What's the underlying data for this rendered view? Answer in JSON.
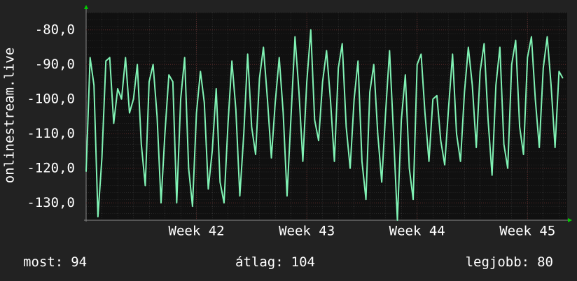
{
  "chart_data": {
    "type": "line",
    "y_label": "onlinestream.live",
    "x": [
      41,
      41.036,
      41.071,
      41.107,
      41.143,
      41.179,
      41.214,
      41.25,
      41.286,
      41.321,
      41.357,
      41.393,
      41.429,
      41.464,
      41.5,
      41.536,
      41.571,
      41.607,
      41.643,
      41.679,
      41.714,
      41.75,
      41.786,
      41.821,
      41.857,
      41.893,
      41.929,
      41.964,
      42,
      42.036,
      42.071,
      42.107,
      42.143,
      42.179,
      42.214,
      42.25,
      42.286,
      42.321,
      42.357,
      42.393,
      42.429,
      42.464,
      42.5,
      42.536,
      42.571,
      42.607,
      42.643,
      42.679,
      42.714,
      42.75,
      42.786,
      42.821,
      42.857,
      42.893,
      42.929,
      42.964,
      43,
      43.036,
      43.071,
      43.107,
      43.143,
      43.179,
      43.214,
      43.25,
      43.286,
      43.321,
      43.357,
      43.393,
      43.429,
      43.464,
      43.5,
      43.536,
      43.571,
      43.607,
      43.643,
      43.679,
      43.714,
      43.75,
      43.786,
      43.821,
      43.857,
      43.893,
      43.929,
      43.964,
      44,
      44.036,
      44.071,
      44.107,
      44.143,
      44.179,
      44.214,
      44.25,
      44.286,
      44.321,
      44.357,
      44.393,
      44.429,
      44.464,
      44.5,
      44.536,
      44.571,
      44.607,
      44.643,
      44.679,
      44.714,
      44.75,
      44.786,
      44.821,
      44.857,
      44.893,
      44.929,
      44.964,
      45,
      45.036,
      45.071,
      45.107,
      45.143,
      45.179,
      45.214,
      45.25,
      45.286,
      45.321
    ],
    "series": [
      {
        "color": "#80f2b4",
        "values": [
          -121,
          -88,
          -96,
          -134,
          -117,
          -89,
          -88,
          -107,
          -97,
          -100,
          -88,
          -104,
          -100,
          -90,
          -113,
          -125,
          -95,
          -90,
          -105,
          -130,
          -110,
          -93,
          -95,
          -130,
          -100,
          -88,
          -120,
          -131,
          -104,
          -92,
          -101,
          -126,
          -115,
          -97,
          -124,
          -130,
          -107,
          -89,
          -103,
          -128,
          -110,
          -87,
          -108,
          -116,
          -94,
          -85,
          -100,
          -117,
          -101,
          -88,
          -104,
          -128,
          -105,
          -82,
          -98,
          -118,
          -95,
          -80,
          -106,
          -112,
          -95,
          -86,
          -100,
          -118,
          -91,
          -84,
          -108,
          -120,
          -100,
          -89,
          -118,
          -129,
          -98,
          -90,
          -110,
          -124,
          -104,
          -86,
          -110,
          -135,
          -106,
          -93,
          -120,
          -129,
          -90,
          -87,
          -104,
          -118,
          -100,
          -99,
          -112,
          -119,
          -102,
          -87,
          -110,
          -118,
          -98,
          -85,
          -96,
          -114,
          -92,
          -84,
          -106,
          -122,
          -96,
          -85,
          -113,
          -120,
          -90,
          -83,
          -108,
          -116,
          -88,
          -82,
          -100,
          -114,
          -91,
          -82,
          -96,
          -114,
          -92,
          -94
        ]
      }
    ],
    "xlim": [
      41,
      45.36
    ],
    "xticks": [
      {
        "value": 42,
        "label": "Week 42"
      },
      {
        "value": 43,
        "label": "Week 43"
      },
      {
        "value": 44,
        "label": "Week 44"
      },
      {
        "value": 45,
        "label": "Week 45"
      }
    ],
    "ylim": [
      -135,
      -75
    ],
    "yticks": [
      {
        "value": -80,
        "label": "-80,0"
      },
      {
        "value": -90,
        "label": "-90,0"
      },
      {
        "value": -100,
        "label": "-100,0"
      },
      {
        "value": -110,
        "label": "-110,0"
      },
      {
        "value": -120,
        "label": "-120,0"
      },
      {
        "value": -130,
        "label": "-130,0"
      }
    ],
    "grid": true,
    "footer": [
      {
        "label": "most:",
        "value": 94
      },
      {
        "label": "átlag:",
        "value": 104
      },
      {
        "label": "legjobb:",
        "value": 80
      }
    ]
  }
}
